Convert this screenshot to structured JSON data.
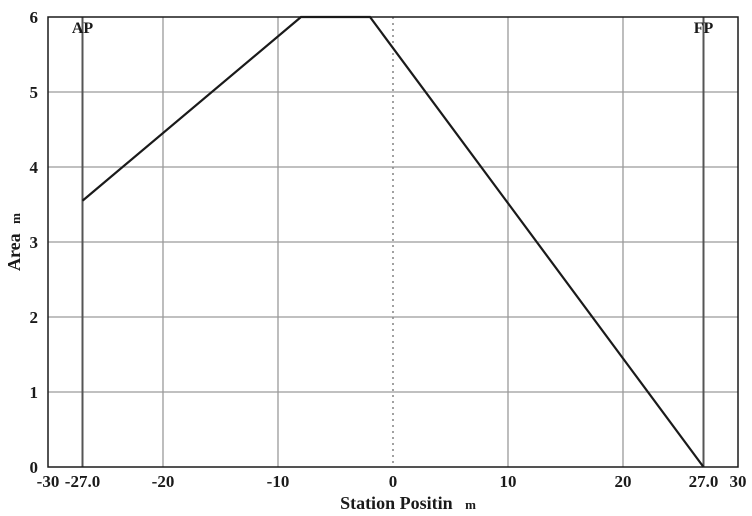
{
  "chart_data": {
    "type": "line",
    "title": "",
    "xlabel": "Station Positin",
    "xlabel_unit": "m",
    "ylabel": "Area",
    "ylabel_unit": "m",
    "xlim": [
      -30,
      30
    ],
    "ylim": [
      0,
      6
    ],
    "grid": true,
    "x_ticks": [
      {
        "value": -30,
        "label": "-30"
      },
      {
        "value": -27,
        "label": "-27.0"
      },
      {
        "value": -20,
        "label": "-20"
      },
      {
        "value": -10,
        "label": "-10"
      },
      {
        "value": 0,
        "label": "0"
      },
      {
        "value": 10,
        "label": "10"
      },
      {
        "value": 20,
        "label": "20"
      },
      {
        "value": 27,
        "label": "27.0"
      },
      {
        "value": 30,
        "label": "30"
      }
    ],
    "y_ticks": [
      {
        "value": 0,
        "label": "0"
      },
      {
        "value": 1,
        "label": "1"
      },
      {
        "value": 2,
        "label": "2"
      },
      {
        "value": 3,
        "label": "3"
      },
      {
        "value": 4,
        "label": "4"
      },
      {
        "value": 5,
        "label": "5"
      },
      {
        "value": 6,
        "label": "6"
      }
    ],
    "series": [
      {
        "x": [
          -27.0,
          -8.0,
          -2.0,
          27.0
        ],
        "y": [
          3.55,
          6.0,
          6.0,
          0.0
        ]
      }
    ],
    "markers": [
      {
        "label": "AP",
        "x": -27.0
      },
      {
        "label": "FP",
        "x": 27.0
      }
    ],
    "reference_line_x": 0
  },
  "colors": {
    "line": "#1a1a1a",
    "grid": "#9a9a9a",
    "marker_line": "#555555",
    "zero_line": "#8a8a8a"
  }
}
